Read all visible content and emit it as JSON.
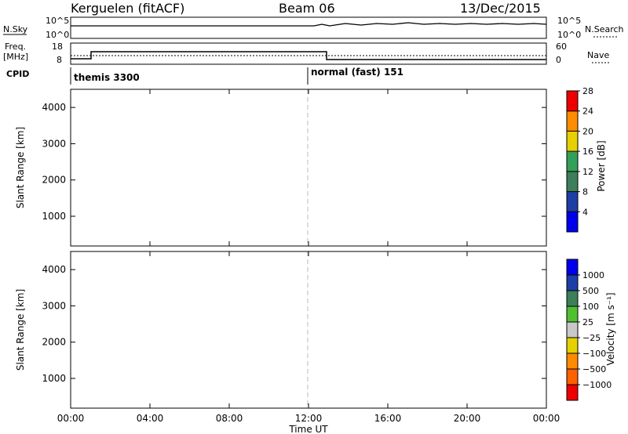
{
  "header": {
    "station": "Kerguelen (fitACF)",
    "beam": "Beam 06",
    "date": "13/Dec/2015"
  },
  "sky_panel": {
    "left_label": "N.Sky",
    "right_label": "N.Search",
    "left_ticks": [
      "10^5",
      "10^0"
    ],
    "right_ticks": [
      "10^5",
      "10^0"
    ]
  },
  "freq_panel": {
    "left_label_1": "Freq.",
    "left_label_2": "[MHz]",
    "right_label": "Nave",
    "left_ticks": [
      "18",
      "8"
    ],
    "right_ticks": [
      "60",
      "0"
    ]
  },
  "cpid": {
    "label": "CPID",
    "segments": [
      "themis 3300",
      "normal (fast) 151"
    ]
  },
  "colors": {
    "power_scale": [
      "#0000ee",
      "#1c3ea6",
      "#3c7f5a",
      "#33a05a",
      "#e6d000",
      "#ff8c00",
      "#ee0000"
    ],
    "velocity_scale": [
      "#0000ee",
      "#1c3ea6",
      "#3c7f5a",
      "#50c030",
      "#c8c8c8",
      "#e6d000",
      "#ff8c00",
      "#ff6000",
      "#ee0000"
    ],
    "ground_scatter": "#c8c8c8"
  },
  "chart_data": [
    {
      "type": "heatmap",
      "ylabel": "Slant Range [km]",
      "ylim": [
        180,
        4500
      ],
      "yticks": [
        "1000",
        "2000",
        "3000",
        "4000"
      ],
      "colorbar_label": "Power [dB]",
      "colorbar_ticks": [
        "4",
        "8",
        "12",
        "16",
        "20",
        "24",
        "28"
      ],
      "colorbar_range": [
        0,
        30
      ]
    },
    {
      "type": "heatmap",
      "ylabel": "Slant Range [km]",
      "ylim": [
        180,
        4500
      ],
      "yticks": [
        "1000",
        "2000",
        "3000",
        "4000"
      ],
      "colorbar_label": "Velocity [m s⁻¹]",
      "colorbar_ticks": [
        "1000",
        "500",
        "100",
        "25",
        "−25",
        "−100",
        "−500",
        "−1000"
      ]
    }
  ],
  "x_axis": {
    "label": "Time UT",
    "ticks": [
      "00:00",
      "04:00",
      "08:00",
      "12:00",
      "16:00",
      "20:00",
      "00:00"
    ],
    "range_hours": [
      0,
      24
    ]
  }
}
